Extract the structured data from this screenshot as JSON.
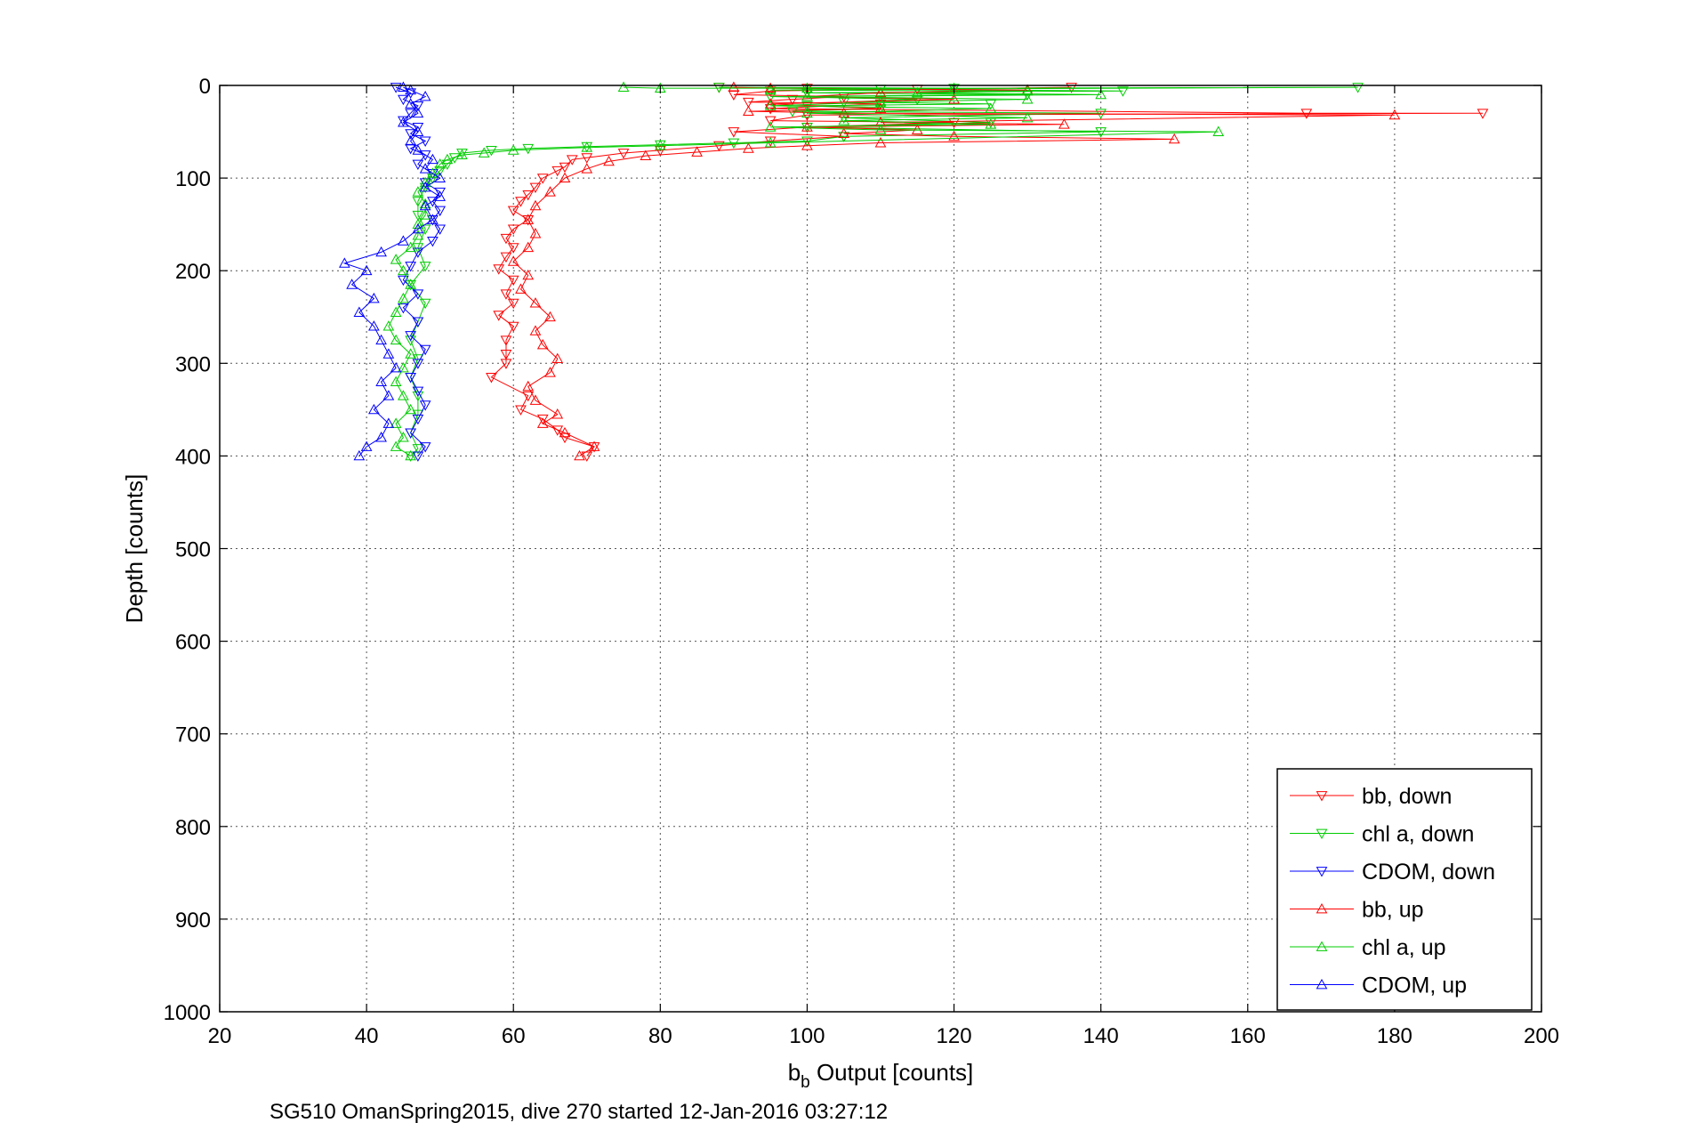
{
  "chart_data": {
    "type": "line",
    "xlabel_main": "b",
    "xlabel_sub": "b",
    "xlabel_rest": " Output [counts]",
    "ylabel": "Depth [counts]",
    "caption": "SG510 OmanSpring2015, dive 270 started 12-Jan-2016 03:27:12",
    "xlim": [
      20,
      200
    ],
    "ylim": [
      1000,
      0
    ],
    "y_reversed": true,
    "grid": true,
    "legend_position": "bottom-right",
    "xticks": [
      20,
      40,
      60,
      80,
      100,
      120,
      140,
      160,
      180,
      200
    ],
    "yticks": [
      0,
      100,
      200,
      300,
      400,
      500,
      600,
      700,
      800,
      900,
      1000
    ],
    "series": [
      {
        "name": "bb, down",
        "color": "#ff0000",
        "marker": "triangle-down",
        "points": [
          [
            88,
            2
          ],
          [
            100,
            3
          ],
          [
            115,
            4
          ],
          [
            136,
            2
          ],
          [
            95,
            6
          ],
          [
            90,
            10
          ],
          [
            105,
            12
          ],
          [
            98,
            15
          ],
          [
            92,
            18
          ],
          [
            110,
            20
          ],
          [
            95,
            25
          ],
          [
            168,
            30
          ],
          [
            192,
            30
          ],
          [
            100,
            32
          ],
          [
            95,
            38
          ],
          [
            120,
            40
          ],
          [
            100,
            45
          ],
          [
            90,
            50
          ],
          [
            105,
            55
          ],
          [
            95,
            60
          ],
          [
            88,
            65
          ],
          [
            80,
            70
          ],
          [
            75,
            73
          ],
          [
            70,
            78
          ],
          [
            68,
            80
          ],
          [
            67,
            88
          ],
          [
            66,
            92
          ],
          [
            64,
            100
          ],
          [
            63,
            110
          ],
          [
            62,
            118
          ],
          [
            61,
            125
          ],
          [
            60,
            135
          ],
          [
            62,
            145
          ],
          [
            60,
            155
          ],
          [
            59,
            165
          ],
          [
            60,
            175
          ],
          [
            59,
            185
          ],
          [
            58,
            198
          ],
          [
            60,
            210
          ],
          [
            59,
            225
          ],
          [
            60,
            235
          ],
          [
            58,
            248
          ],
          [
            60,
            260
          ],
          [
            59,
            275
          ],
          [
            59,
            290
          ],
          [
            59,
            300
          ],
          [
            57,
            315
          ],
          [
            62,
            335
          ],
          [
            61,
            350
          ],
          [
            64,
            360
          ],
          [
            66,
            372
          ],
          [
            67,
            380
          ],
          [
            71,
            390
          ],
          [
            70,
            400
          ]
        ]
      },
      {
        "name": "chl a, down",
        "color": "#00cc00",
        "marker": "triangle-down",
        "points": [
          [
            88,
            2
          ],
          [
            120,
            3
          ],
          [
            175,
            2
          ],
          [
            110,
            4
          ],
          [
            143,
            6
          ],
          [
            100,
            8
          ],
          [
            130,
            10
          ],
          [
            95,
            12
          ],
          [
            115,
            15
          ],
          [
            105,
            18
          ],
          [
            125,
            20
          ],
          [
            100,
            22
          ],
          [
            110,
            25
          ],
          [
            98,
            28
          ],
          [
            140,
            30
          ],
          [
            105,
            35
          ],
          [
            125,
            40
          ],
          [
            100,
            45
          ],
          [
            140,
            50
          ],
          [
            105,
            55
          ],
          [
            100,
            60
          ],
          [
            90,
            62
          ],
          [
            80,
            64
          ],
          [
            70,
            66
          ],
          [
            62,
            68
          ],
          [
            57,
            70
          ],
          [
            53,
            73
          ],
          [
            52,
            78
          ],
          [
            51,
            85
          ],
          [
            50,
            92
          ],
          [
            49,
            100
          ],
          [
            48,
            110
          ],
          [
            47,
            125
          ],
          [
            47,
            140
          ],
          [
            48,
            155
          ],
          [
            47,
            175
          ],
          [
            48,
            195
          ],
          [
            46,
            215
          ],
          [
            48,
            235
          ],
          [
            47,
            255
          ],
          [
            46,
            275
          ],
          [
            47,
            295
          ],
          [
            46,
            315
          ],
          [
            47,
            335
          ],
          [
            47,
            355
          ],
          [
            46,
            375
          ],
          [
            47,
            392
          ],
          [
            46,
            400
          ]
        ]
      },
      {
        "name": "CDOM, down",
        "color": "#0000ff",
        "marker": "triangle-down",
        "points": [
          [
            44,
            2
          ],
          [
            46,
            8
          ],
          [
            45,
            15
          ],
          [
            47,
            22
          ],
          [
            46,
            30
          ],
          [
            45,
            38
          ],
          [
            47,
            45
          ],
          [
            46,
            52
          ],
          [
            48,
            60
          ],
          [
            46,
            68
          ],
          [
            48,
            75
          ],
          [
            47,
            85
          ],
          [
            49,
            95
          ],
          [
            48,
            105
          ],
          [
            50,
            115
          ],
          [
            49,
            125
          ],
          [
            50,
            135
          ],
          [
            49,
            145
          ],
          [
            50,
            155
          ],
          [
            49,
            168
          ],
          [
            47,
            180
          ],
          [
            46,
            195
          ],
          [
            45,
            210
          ],
          [
            47,
            225
          ],
          [
            45,
            240
          ],
          [
            47,
            255
          ],
          [
            46,
            270
          ],
          [
            48,
            285
          ],
          [
            47,
            300
          ],
          [
            46,
            315
          ],
          [
            47,
            330
          ],
          [
            48,
            345
          ],
          [
            47,
            360
          ],
          [
            46,
            375
          ],
          [
            48,
            390
          ],
          [
            47,
            400
          ]
        ]
      },
      {
        "name": "bb, up",
        "color": "#ff0000",
        "marker": "triangle-up",
        "points": [
          [
            69,
            400
          ],
          [
            71,
            390
          ],
          [
            67,
            375
          ],
          [
            64,
            365
          ],
          [
            66,
            355
          ],
          [
            63,
            340
          ],
          [
            62,
            325
          ],
          [
            65,
            310
          ],
          [
            66,
            295
          ],
          [
            64,
            280
          ],
          [
            63,
            265
          ],
          [
            65,
            250
          ],
          [
            63,
            235
          ],
          [
            61,
            220
          ],
          [
            62,
            205
          ],
          [
            60,
            190
          ],
          [
            62,
            175
          ],
          [
            63,
            160
          ],
          [
            62,
            145
          ],
          [
            63,
            130
          ],
          [
            65,
            115
          ],
          [
            67,
            100
          ],
          [
            70,
            90
          ],
          [
            73,
            82
          ],
          [
            78,
            76
          ],
          [
            85,
            72
          ],
          [
            92,
            68
          ],
          [
            100,
            65
          ],
          [
            110,
            62
          ],
          [
            150,
            58
          ],
          [
            120,
            55
          ],
          [
            105,
            52
          ],
          [
            115,
            48
          ],
          [
            100,
            45
          ],
          [
            135,
            42
          ],
          [
            110,
            40
          ],
          [
            180,
            32
          ],
          [
            105,
            30
          ],
          [
            92,
            28
          ],
          [
            110,
            25
          ],
          [
            95,
            20
          ],
          [
            120,
            15
          ],
          [
            100,
            12
          ],
          [
            110,
            8
          ],
          [
            130,
            5
          ],
          [
            95,
            3
          ],
          [
            90,
            2
          ]
        ]
      },
      {
        "name": "chl a, up",
        "color": "#00cc00",
        "marker": "triangle-up",
        "points": [
          [
            46,
            400
          ],
          [
            44,
            390
          ],
          [
            45,
            380
          ],
          [
            44,
            365
          ],
          [
            46,
            350
          ],
          [
            45,
            335
          ],
          [
            44,
            320
          ],
          [
            45,
            305
          ],
          [
            46,
            290
          ],
          [
            44,
            275
          ],
          [
            43,
            260
          ],
          [
            44,
            245
          ],
          [
            45,
            230
          ],
          [
            46,
            215
          ],
          [
            45,
            200
          ],
          [
            44,
            188
          ],
          [
            46,
            175
          ],
          [
            47,
            162
          ],
          [
            47,
            150
          ],
          [
            48,
            140
          ],
          [
            48,
            128
          ],
          [
            47,
            115
          ],
          [
            48,
            105
          ],
          [
            49,
            95
          ],
          [
            50,
            85
          ],
          [
            51,
            80
          ],
          [
            53,
            75
          ],
          [
            56,
            73
          ],
          [
            60,
            70
          ],
          [
            70,
            67
          ],
          [
            80,
            65
          ],
          [
            95,
            62
          ],
          [
            156,
            50
          ],
          [
            110,
            48
          ],
          [
            95,
            45
          ],
          [
            125,
            42
          ],
          [
            105,
            38
          ],
          [
            130,
            35
          ],
          [
            100,
            30
          ],
          [
            125,
            25
          ],
          [
            95,
            22
          ],
          [
            110,
            18
          ],
          [
            130,
            15
          ],
          [
            100,
            12
          ],
          [
            140,
            10
          ],
          [
            115,
            8
          ],
          [
            130,
            6
          ],
          [
            95,
            5
          ],
          [
            120,
            3
          ],
          [
            100,
            3
          ],
          [
            80,
            3
          ],
          [
            75,
            2
          ]
        ]
      },
      {
        "name": "CDOM, up",
        "color": "#0000ff",
        "marker": "triangle-up",
        "points": [
          [
            39,
            400
          ],
          [
            40,
            390
          ],
          [
            42,
            380
          ],
          [
            43,
            365
          ],
          [
            41,
            350
          ],
          [
            43,
            335
          ],
          [
            42,
            320
          ],
          [
            44,
            305
          ],
          [
            43,
            290
          ],
          [
            42,
            275
          ],
          [
            41,
            260
          ],
          [
            39,
            245
          ],
          [
            41,
            230
          ],
          [
            38,
            215
          ],
          [
            40,
            200
          ],
          [
            37,
            192
          ],
          [
            42,
            180
          ],
          [
            45,
            168
          ],
          [
            47,
            155
          ],
          [
            49,
            145
          ],
          [
            48,
            130
          ],
          [
            50,
            120
          ],
          [
            48,
            110
          ],
          [
            50,
            100
          ],
          [
            48,
            90
          ],
          [
            49,
            80
          ],
          [
            47,
            70
          ],
          [
            46,
            60
          ],
          [
            47,
            50
          ],
          [
            45,
            40
          ],
          [
            47,
            30
          ],
          [
            46,
            20
          ],
          [
            48,
            12
          ],
          [
            46,
            5
          ],
          [
            45,
            2
          ]
        ]
      }
    ]
  }
}
